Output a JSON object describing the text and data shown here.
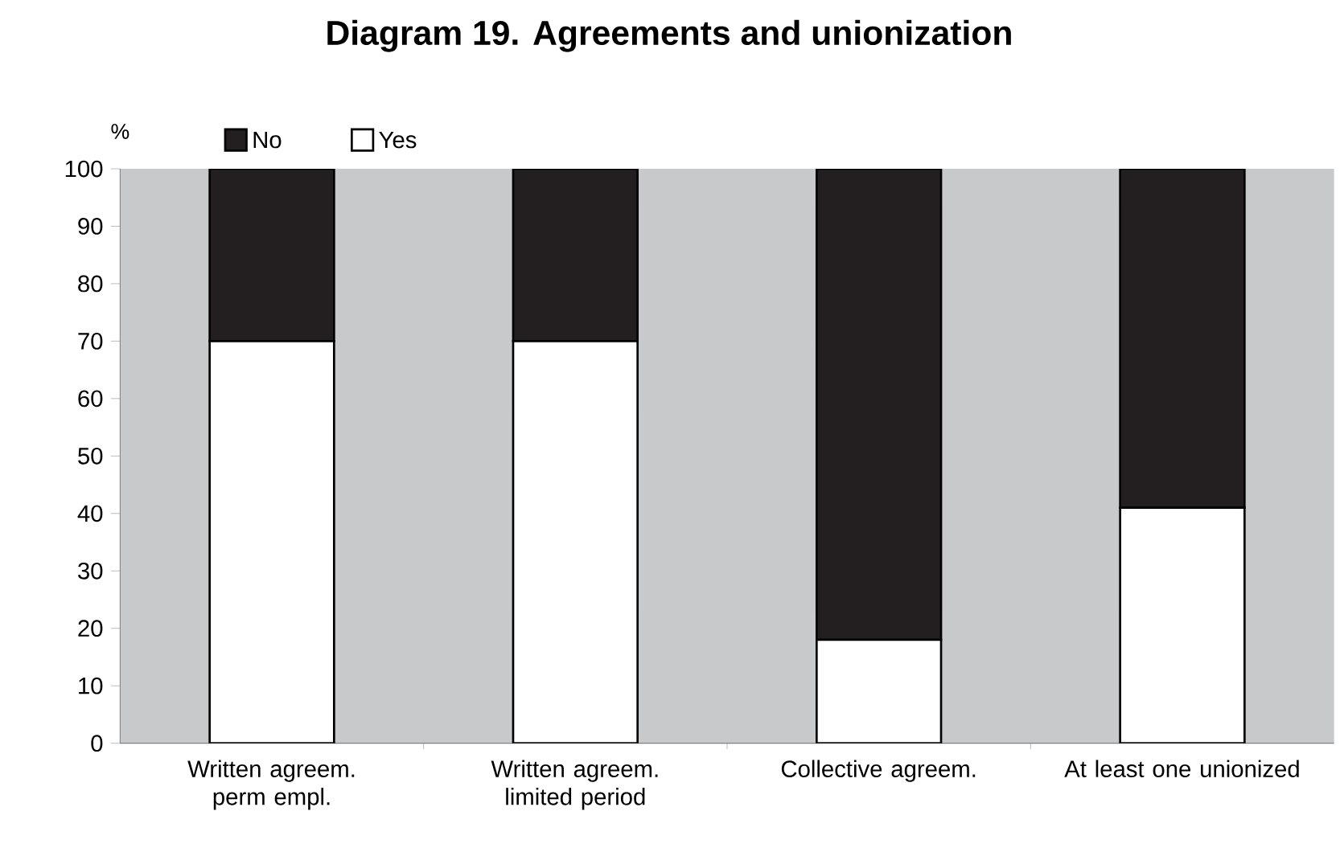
{
  "chart_data": {
    "type": "bar",
    "title": "Diagram 19. Agreements and unionization",
    "ylabel": "%",
    "categories": [
      "Written agreem. perm empl.",
      "Written agreem. limited period",
      "Collective agreem.",
      "At least one unionized"
    ],
    "series": [
      {
        "name": "Yes",
        "color": "#ffffff",
        "values": [
          70,
          70,
          18,
          41
        ]
      },
      {
        "name": "No",
        "color": "#231f20",
        "values": [
          30,
          30,
          82,
          59
        ]
      }
    ],
    "stacked": true,
    "ylim": [
      0,
      100
    ],
    "yticks": [
      0,
      10,
      20,
      30,
      40,
      50,
      60,
      70,
      80,
      90,
      100
    ],
    "legend": "top left"
  }
}
